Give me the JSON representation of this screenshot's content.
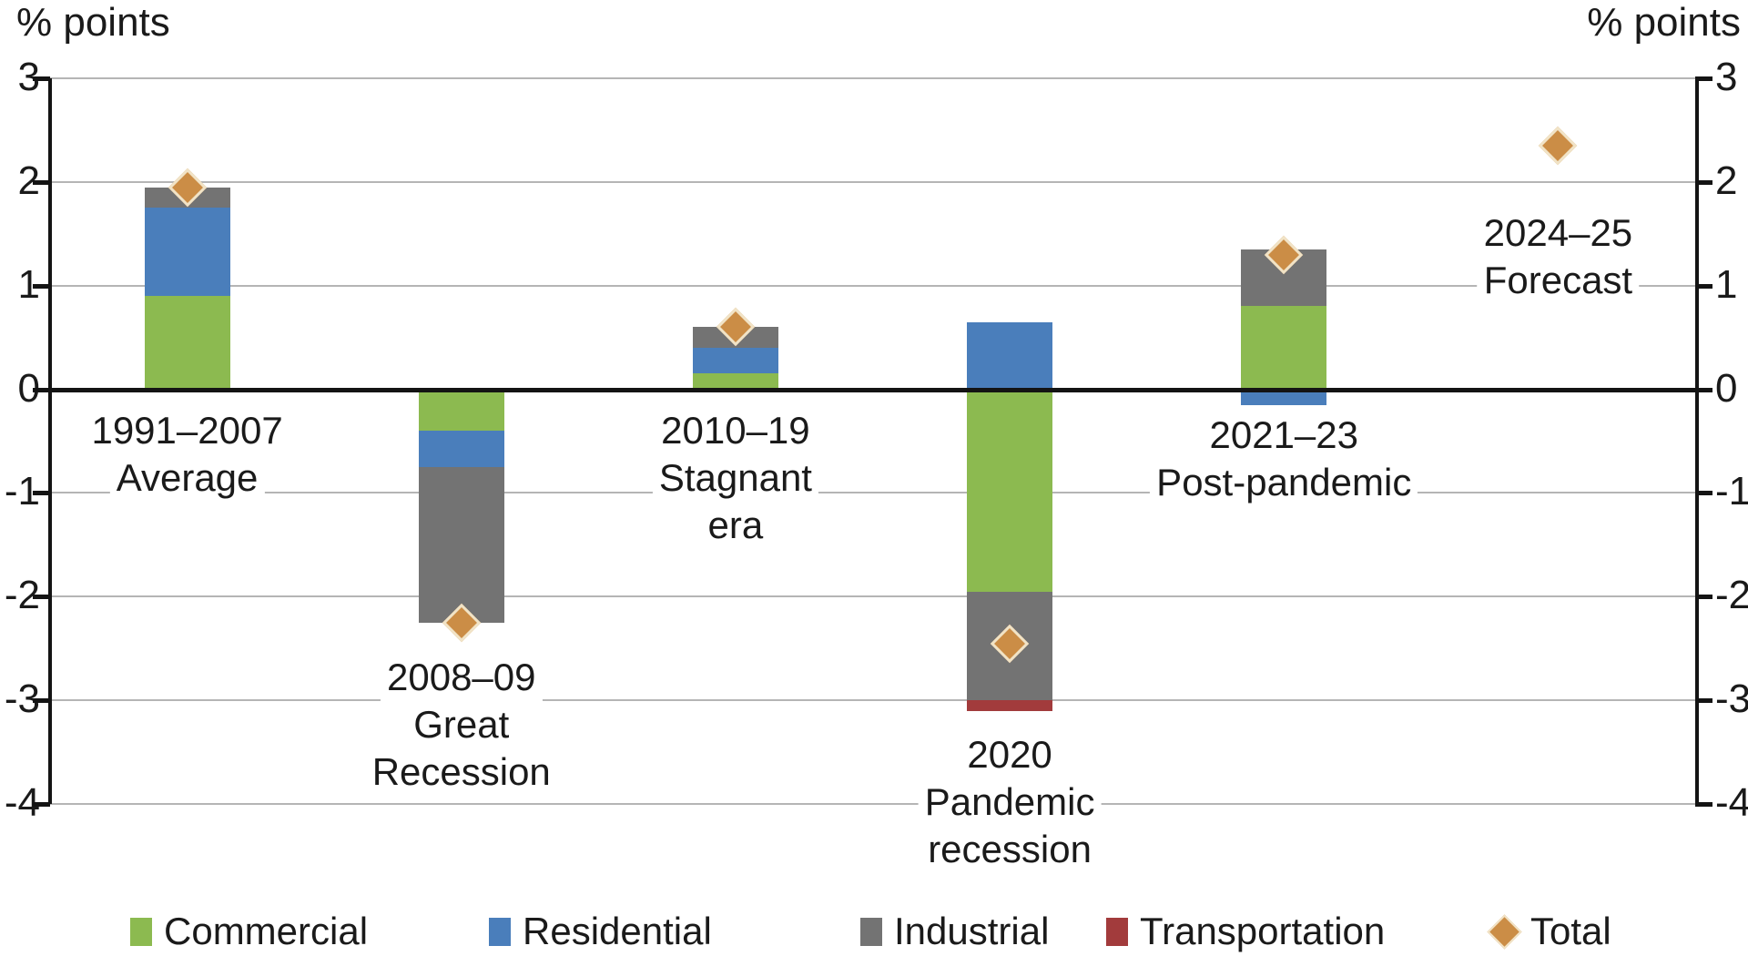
{
  "chart_data": {
    "type": "bar",
    "stacked": true,
    "title": "",
    "ylabel_left": "% points",
    "ylabel_right": "% points",
    "ylim": [
      -4,
      3
    ],
    "yticks": [
      3,
      2,
      1,
      0,
      -1,
      -2,
      -3,
      -4
    ],
    "grid": true,
    "legend_position": "bottom",
    "categories": [
      {
        "label_lines": [
          "1991–2007",
          "Average"
        ]
      },
      {
        "label_lines": [
          "2008–09",
          "Great",
          "Recession"
        ]
      },
      {
        "label_lines": [
          "2010–19",
          "Stagnant",
          "era"
        ]
      },
      {
        "label_lines": [
          "2020",
          "Pandemic",
          "recession"
        ]
      },
      {
        "label_lines": [
          "2021–23",
          "Post-pandemic"
        ]
      },
      {
        "label_lines": [
          "2024–25",
          "Forecast"
        ]
      }
    ],
    "series": [
      {
        "name": "Commercial",
        "color": "#8cba50",
        "values": [
          0.9,
          -0.4,
          0.15,
          -1.95,
          0.8,
          0
        ]
      },
      {
        "name": "Residential",
        "color": "#4a7ebb",
        "values": [
          0.85,
          -0.35,
          0.25,
          0.65,
          -0.15,
          0
        ]
      },
      {
        "name": "Industrial",
        "color": "#737373",
        "values": [
          0.2,
          -1.5,
          0.2,
          -1.05,
          0.55,
          0
        ]
      },
      {
        "name": "Transportation",
        "color": "#a23b3c",
        "values": [
          0,
          0,
          0,
          -0.1,
          0,
          0
        ]
      }
    ],
    "marker_series": {
      "name": "Total",
      "shape": "diamond",
      "color": "#cb8d46",
      "border_color": "#f1e3c6",
      "values": [
        1.95,
        -2.25,
        0.6,
        -2.45,
        1.3,
        2.35
      ]
    },
    "legend": [
      {
        "label": "Commercial",
        "swatch": "square",
        "color": "#8cba50"
      },
      {
        "label": "Residential",
        "swatch": "square",
        "color": "#4a7ebb"
      },
      {
        "label": "Industrial",
        "swatch": "square",
        "color": "#737373"
      },
      {
        "label": "Transportation",
        "swatch": "square",
        "color": "#a23b3c"
      },
      {
        "label": "Total",
        "swatch": "diamond",
        "color": "#cb8d46"
      }
    ]
  }
}
